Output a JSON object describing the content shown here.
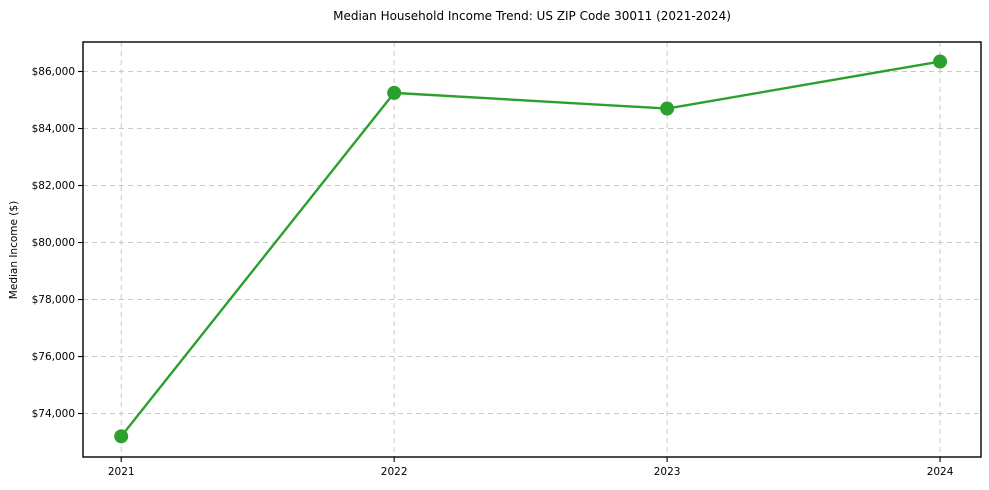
{
  "chart_data": {
    "type": "line",
    "title": "Median Household Income Trend: US ZIP Code 30011 (2021-2024)",
    "xlabel": "",
    "ylabel": "Median Income ($)",
    "x": [
      2021,
      2022,
      2023,
      2024
    ],
    "x_tick_labels": [
      "2021",
      "2022",
      "2023",
      "2024"
    ],
    "series": [
      {
        "name": "Median household income",
        "values": [
          73200,
          85250,
          84700,
          86350
        ]
      }
    ],
    "y_ticks": [
      74000,
      76000,
      78000,
      80000,
      82000,
      84000,
      86000
    ],
    "y_tick_labels": [
      "$74,000",
      "$76,000",
      "$78,000",
      "$80,000",
      "$82,000",
      "$84,000",
      "$86,000"
    ],
    "xlim": [
      2020.86,
      2024.15
    ],
    "ylim": [
      72475,
      87035
    ],
    "grid": true,
    "grid_style": "dashed",
    "legend": false,
    "marker": "circle",
    "line_color": "#2ca02c",
    "grid_color": "#c9c9c9",
    "axis_color": "#000000",
    "background_color": "#ffffff"
  }
}
